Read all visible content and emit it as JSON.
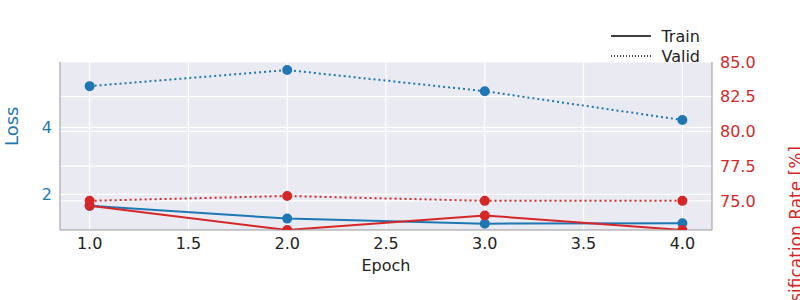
{
  "chart_data": {
    "type": "line",
    "x": [
      1,
      2,
      3,
      4
    ],
    "xlabel": "Epoch",
    "ylabel": "Loss",
    "y2label": "Misclassification Rate [%]",
    "xlim": [
      0.85,
      4.15
    ],
    "xticks": [
      {
        "value": 1,
        "label": "1.0"
      },
      {
        "value": 1.5,
        "label": "1.5"
      },
      {
        "value": 2,
        "label": "2.0"
      },
      {
        "value": 2.5,
        "label": "2.5"
      },
      {
        "value": 3,
        "label": "3.0"
      },
      {
        "value": 3.5,
        "label": "3.5"
      },
      {
        "value": 4,
        "label": "4.0"
      }
    ],
    "ylim": [
      0.94,
      5.95
    ],
    "yticks": [
      2,
      4
    ],
    "y2lim": [
      72.9,
      85.0
    ],
    "y2ticks": [
      {
        "value": 75,
        "label": "75.0"
      },
      {
        "value": 77.5,
        "label": "77.5"
      },
      {
        "value": 80,
        "label": "80.0"
      },
      {
        "value": 82.5,
        "label": "82.5"
      },
      {
        "value": 85,
        "label": "85.0"
      }
    ],
    "grid": true,
    "legend": "upper right",
    "series": [
      {
        "name": "Train",
        "color": "#1f77b4",
        "line_style": "solid",
        "marker": "circle",
        "values": [
          1.66,
          1.28,
          1.13,
          1.14
        ]
      },
      {
        "name": "Valid",
        "color": "#1f77b4",
        "line_style": "dotted",
        "marker": "circle",
        "values": [
          5.23,
          5.71,
          5.08,
          4.22
        ]
      },
      {
        "name": "Train",
        "color": "#d62728",
        "line_style": "solid",
        "marker": "circle",
        "axis": "y2",
        "values": [
          74.65,
          72.9,
          73.95,
          72.9
        ]
      },
      {
        "name": "Valid",
        "color": "#d62728",
        "line_style": "dotted",
        "marker": "circle",
        "axis": "y2",
        "values": [
          75.0,
          75.35,
          75.0,
          75.0
        ]
      }
    ]
  }
}
